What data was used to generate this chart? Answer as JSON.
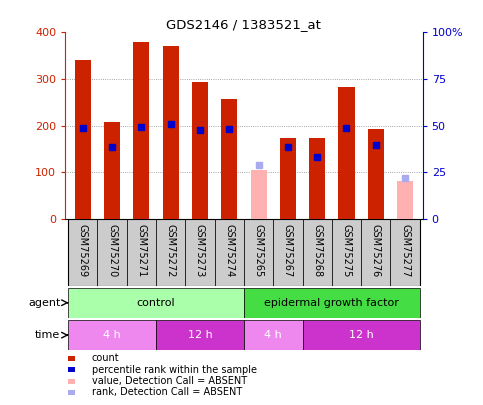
{
  "title": "GDS2146 / 1383521_at",
  "samples": [
    "GSM75269",
    "GSM75270",
    "GSM75271",
    "GSM75272",
    "GSM75273",
    "GSM75274",
    "GSM75265",
    "GSM75267",
    "GSM75268",
    "GSM75275",
    "GSM75276",
    "GSM75277"
  ],
  "count_values": [
    340,
    208,
    380,
    370,
    293,
    258,
    105,
    173,
    173,
    282,
    192,
    80
  ],
  "percentile_values": [
    195,
    155,
    197,
    203,
    190,
    192,
    115,
    155,
    133,
    195,
    158,
    87
  ],
  "absent": [
    false,
    false,
    false,
    false,
    false,
    false,
    true,
    false,
    false,
    false,
    false,
    true
  ],
  "ylim": [
    0,
    400
  ],
  "yticks_left": [
    0,
    100,
    200,
    300,
    400
  ],
  "yticks_right": [
    0,
    25,
    50,
    75,
    100
  ],
  "yticklabels_right": [
    "0",
    "25",
    "50",
    "75",
    "100%"
  ],
  "color_red": "#cc2200",
  "color_pink": "#ffb0b0",
  "color_blue": "#0000cc",
  "color_lightblue": "#aaaaee",
  "color_grid": "#888888",
  "agent_groups": [
    {
      "label": "control",
      "start": 0,
      "end": 5,
      "color": "#aaffaa"
    },
    {
      "label": "epidermal growth factor",
      "start": 6,
      "end": 11,
      "color": "#44dd44"
    }
  ],
  "time_groups": [
    {
      "label": "4 h",
      "start": 0,
      "end": 2,
      "color": "#ee88ee"
    },
    {
      "label": "12 h",
      "start": 3,
      "end": 5,
      "color": "#cc33cc"
    },
    {
      "label": "4 h",
      "start": 6,
      "end": 7,
      "color": "#ee88ee"
    },
    {
      "label": "12 h",
      "start": 8,
      "end": 11,
      "color": "#cc33cc"
    }
  ],
  "legend_items": [
    {
      "label": "count",
      "color": "#cc2200"
    },
    {
      "label": "percentile rank within the sample",
      "color": "#0000cc"
    },
    {
      "label": "value, Detection Call = ABSENT",
      "color": "#ffb0b0"
    },
    {
      "label": "rank, Detection Call = ABSENT",
      "color": "#aaaaee"
    }
  ],
  "bar_width": 0.55,
  "marker_size": 5
}
